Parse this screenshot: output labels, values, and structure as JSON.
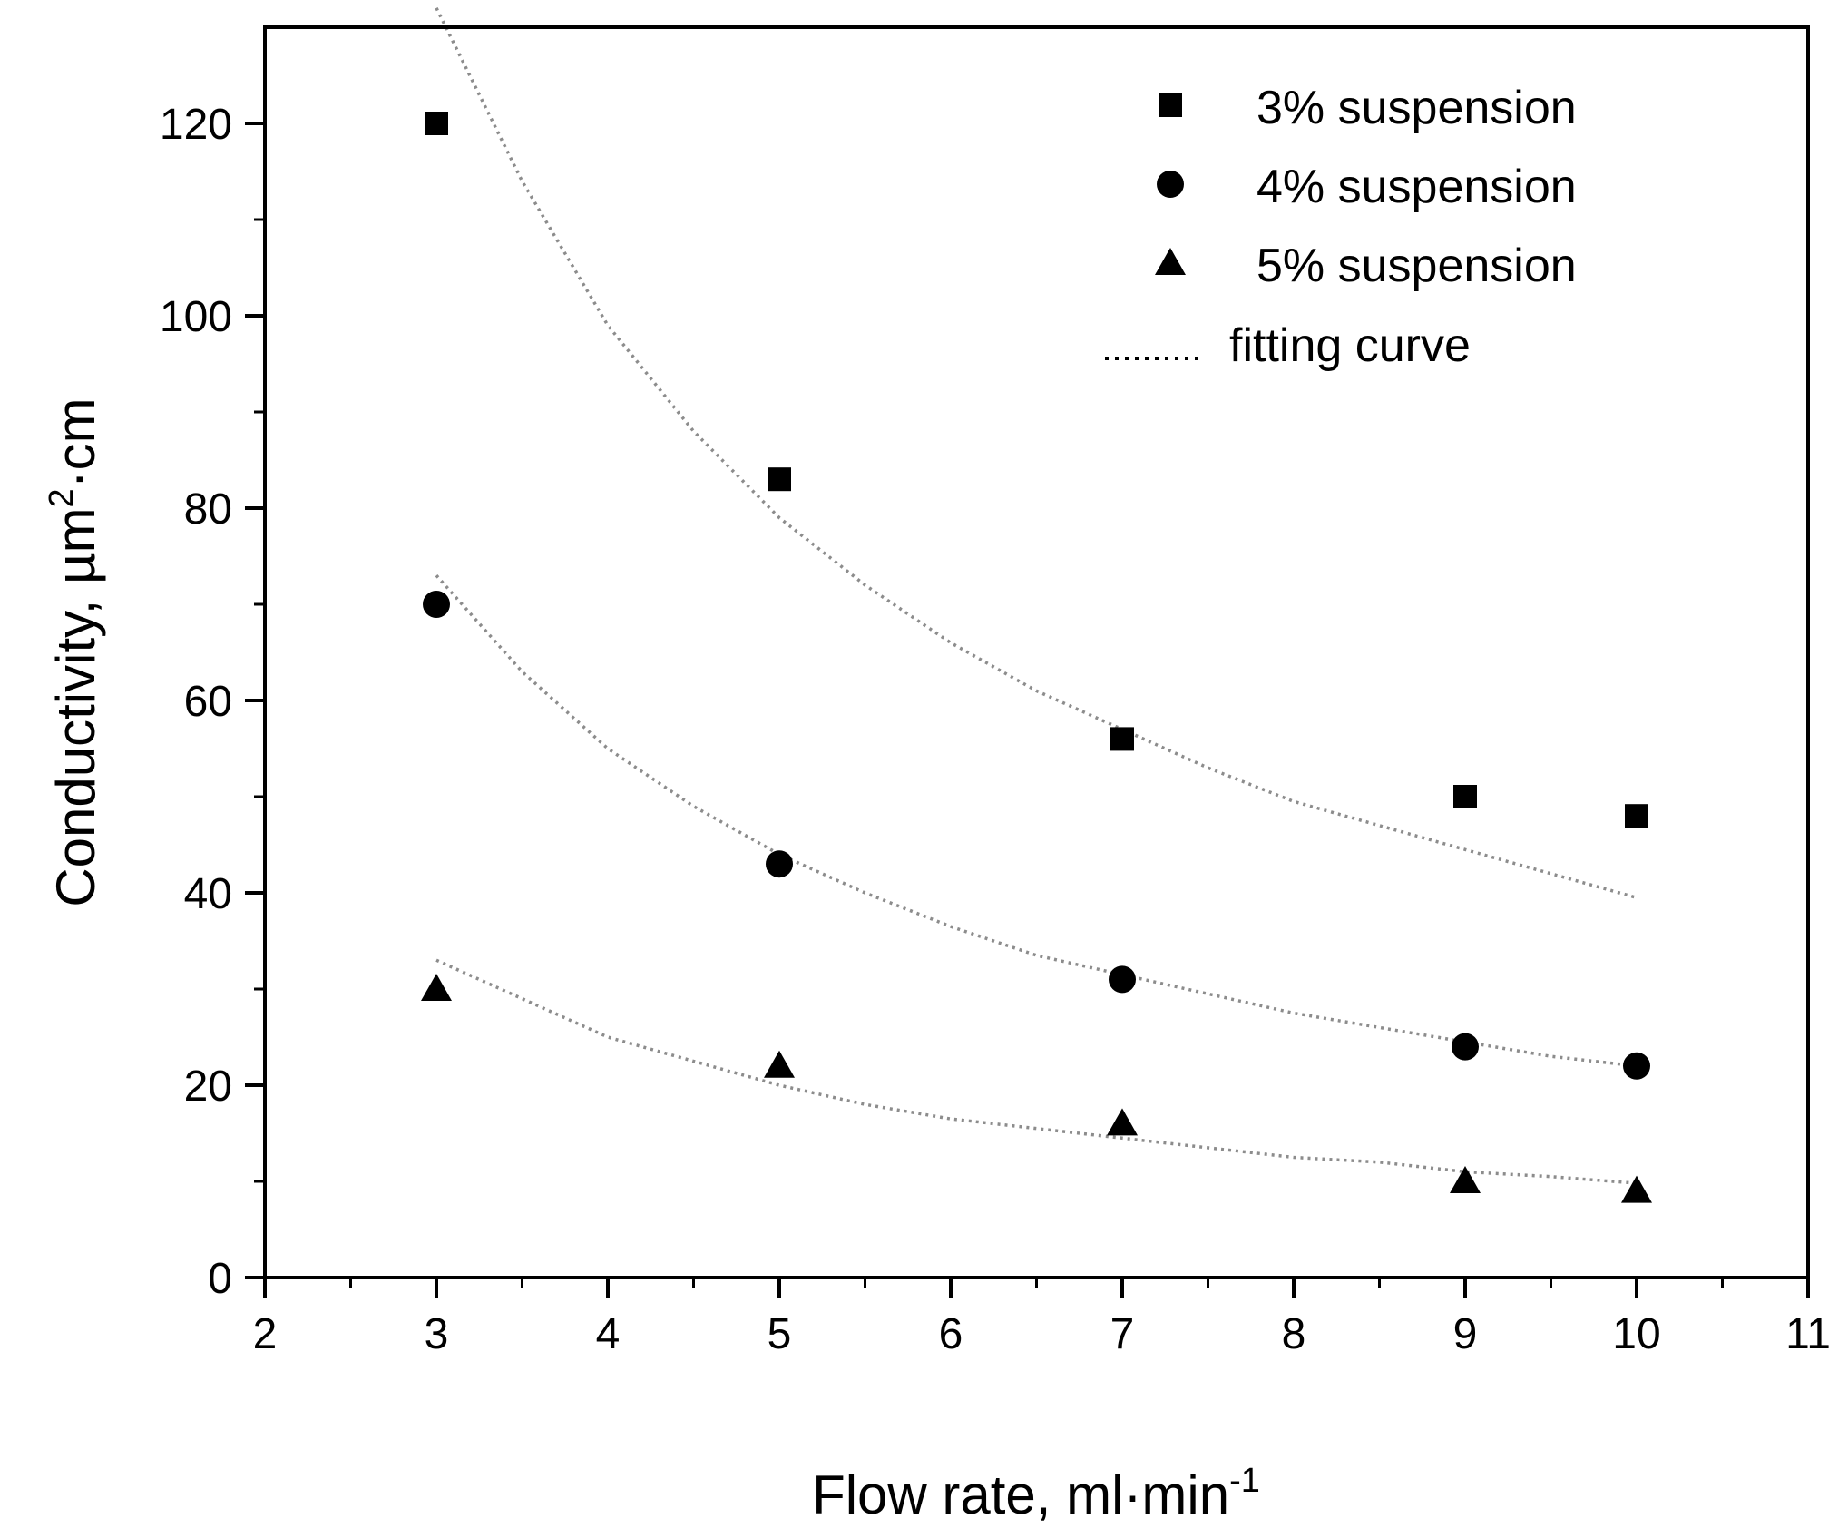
{
  "chart_data": {
    "type": "scatter",
    "title": "",
    "xlabel": "Flow rate, ml·min",
    "xlabel_sup": "-1",
    "ylabel": "Conductivity, µm",
    "ylabel_sup": "2",
    "ylabel_suffix": "·cm",
    "xlim": [
      2,
      11
    ],
    "ylim": [
      0,
      130
    ],
    "xticks": [
      2,
      3,
      4,
      5,
      6,
      7,
      8,
      9,
      10,
      11
    ],
    "yticks": [
      0,
      20,
      40,
      60,
      80,
      100,
      120
    ],
    "x_minor_step": 0.5,
    "y_minor_step": 10,
    "grid": false,
    "legend_position": "top-right",
    "series": [
      {
        "name": "3% suspension",
        "marker": "square",
        "x": [
          3,
          5,
          7,
          9,
          10
        ],
        "values": [
          120,
          83,
          56,
          50,
          48
        ]
      },
      {
        "name": "4% suspension",
        "marker": "circle",
        "x": [
          3,
          5,
          7,
          9,
          10
        ],
        "values": [
          70,
          43,
          31,
          24,
          22
        ]
      },
      {
        "name": "5% suspension",
        "marker": "triangle",
        "x": [
          3,
          5,
          7,
          9,
          10
        ],
        "values": [
          30,
          22,
          16,
          10,
          9
        ]
      }
    ],
    "fit_label": "fitting curve",
    "fit_curves": [
      {
        "series": "3% suspension",
        "x": [
          3,
          3.5,
          4,
          4.5,
          5,
          5.5,
          6,
          6.5,
          7,
          7.5,
          8,
          8.5,
          9,
          9.5,
          10
        ],
        "y": [
          132,
          114,
          99,
          88,
          79,
          72,
          66,
          61,
          57,
          53,
          49.5,
          47,
          44.5,
          42,
          39.5
        ]
      },
      {
        "series": "4% suspension",
        "x": [
          3,
          3.5,
          4,
          4.5,
          5,
          5.5,
          6,
          6.5,
          7,
          7.5,
          8,
          8.5,
          9,
          9.5,
          10
        ],
        "y": [
          73,
          63,
          55,
          49,
          44,
          40,
          36.5,
          33.5,
          31.5,
          29.5,
          27.5,
          26,
          24.5,
          23,
          22
        ]
      },
      {
        "series": "5% suspension",
        "x": [
          3,
          3.5,
          4,
          4.5,
          5,
          5.5,
          6,
          6.5,
          7,
          7.5,
          8,
          8.5,
          9,
          9.5,
          10
        ],
        "y": [
          33,
          29,
          25,
          22.5,
          20,
          18,
          16.5,
          15.5,
          14.5,
          13.5,
          12.5,
          12,
          11,
          10.5,
          9.8
        ]
      }
    ],
    "colors": {
      "marker": "#000000",
      "fit": "#8c8c8c",
      "axis": "#000000"
    }
  }
}
